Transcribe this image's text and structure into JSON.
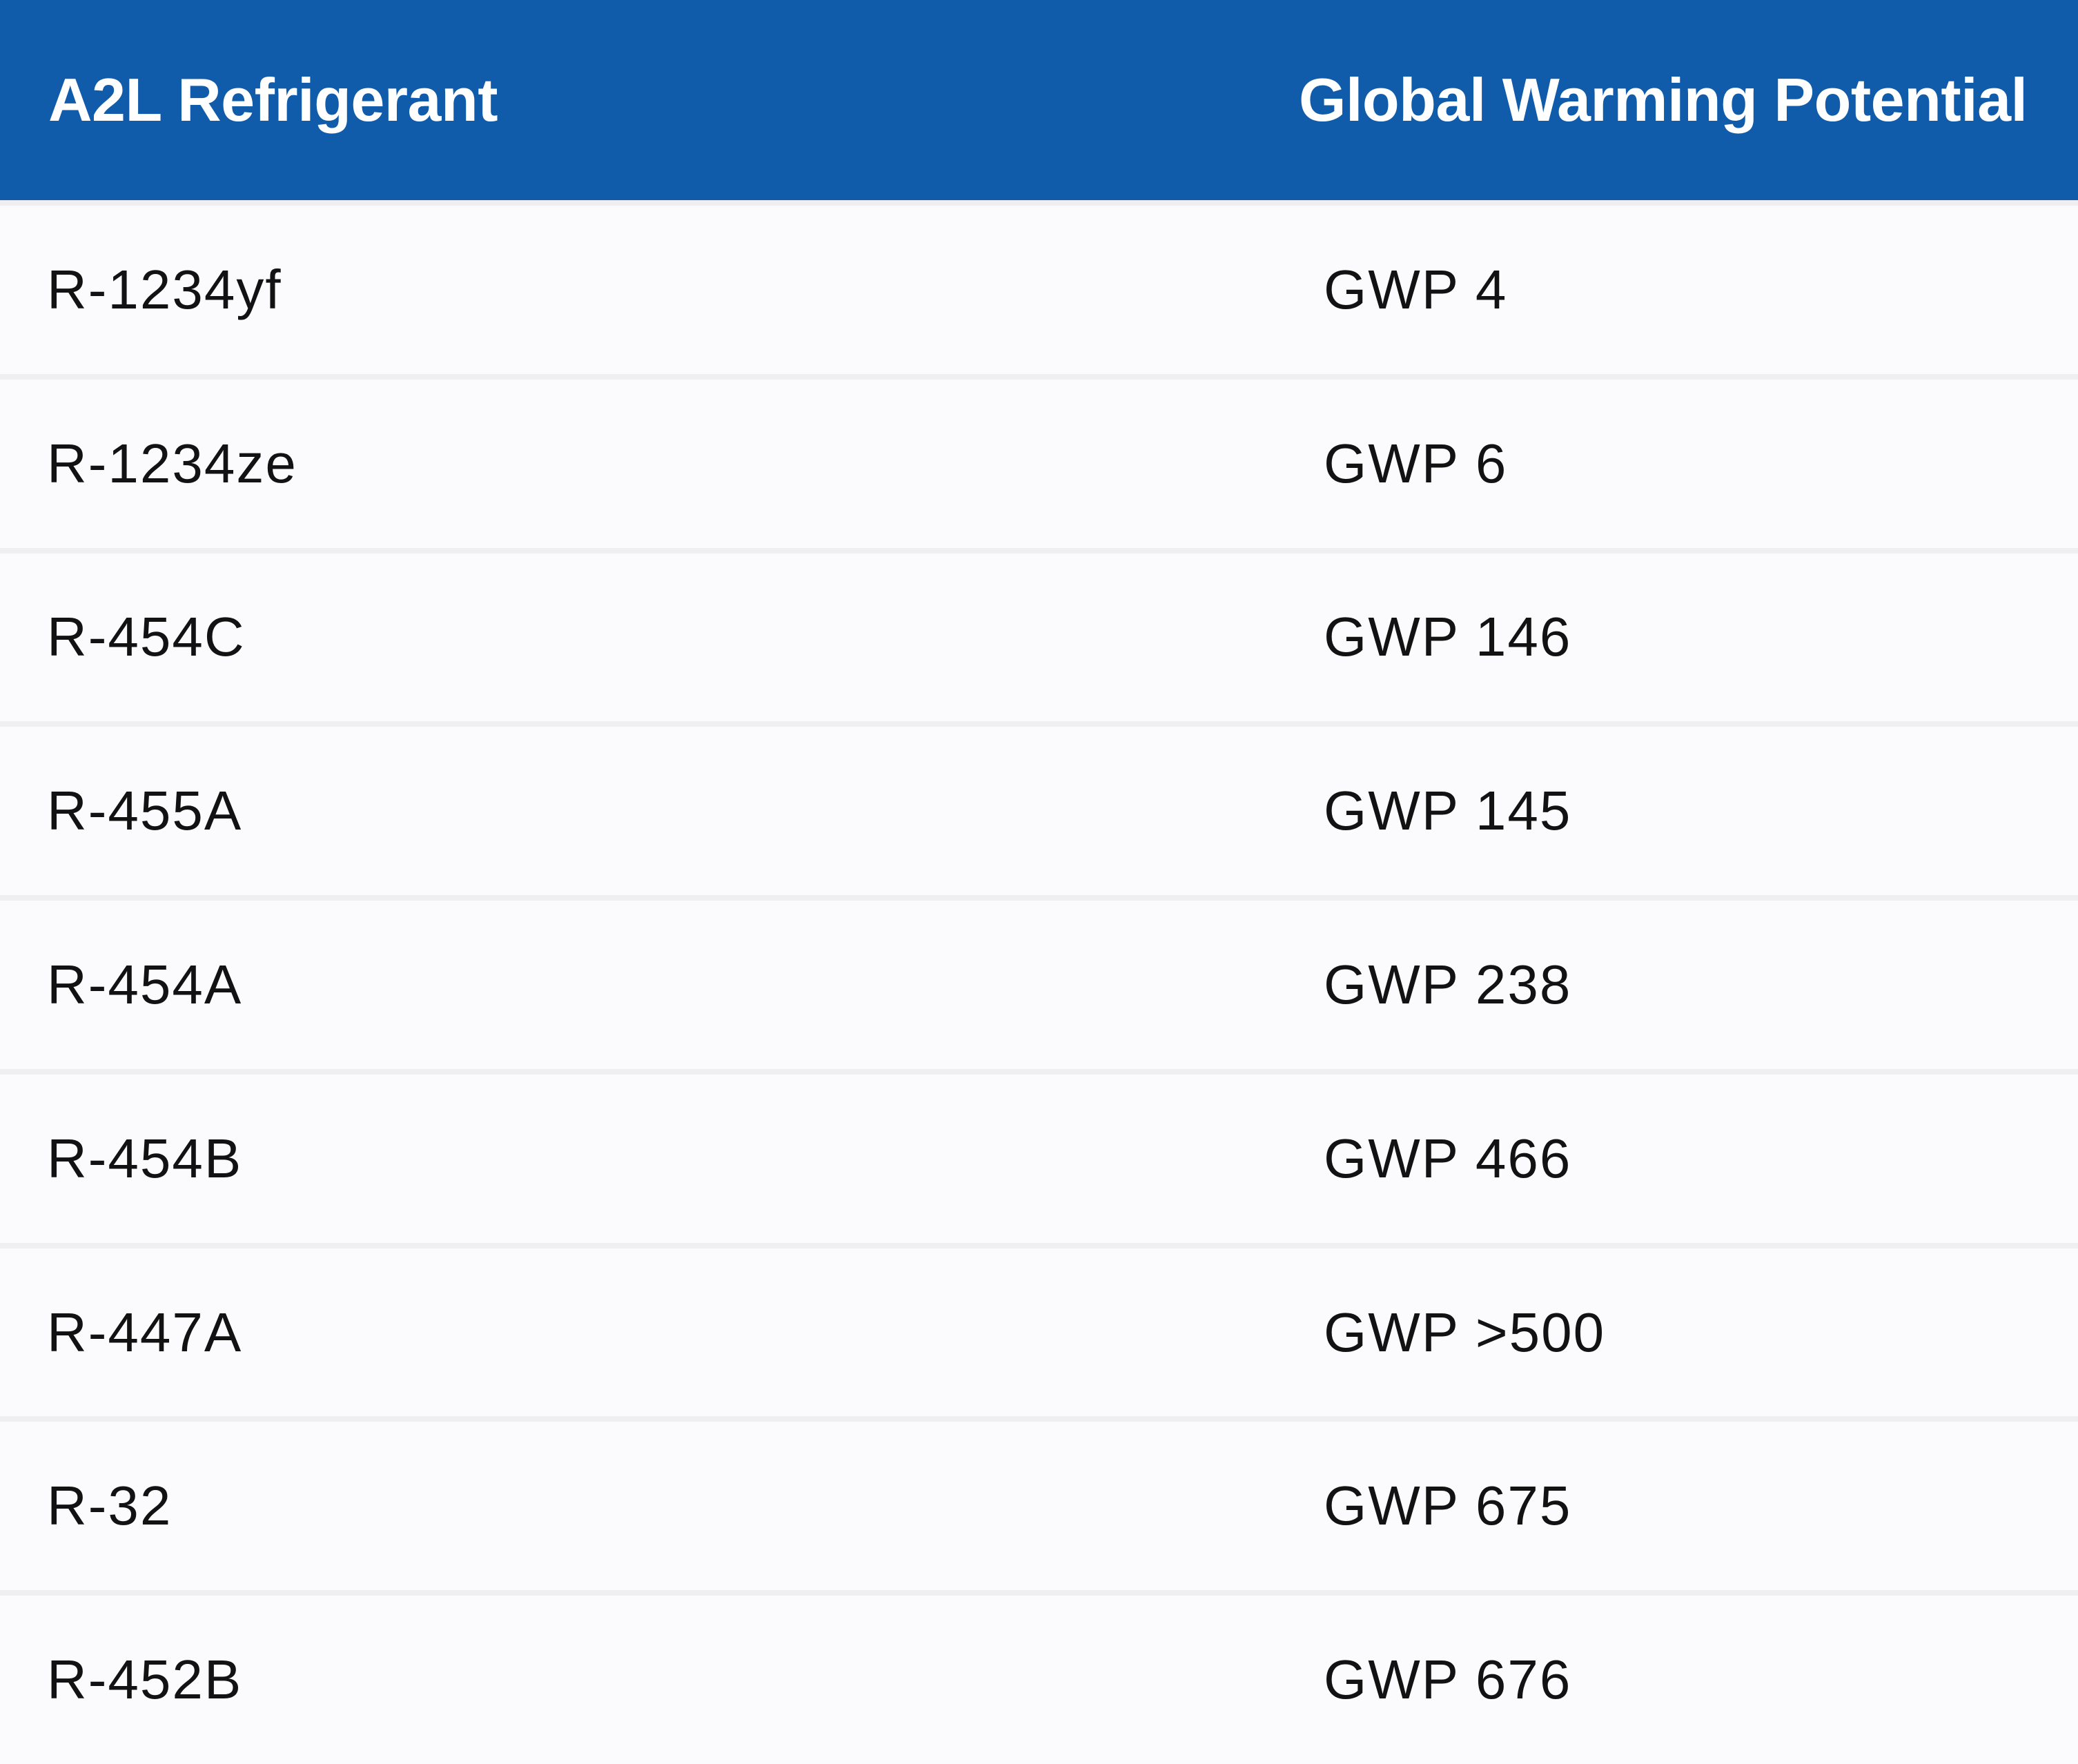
{
  "table": {
    "columns": [
      {
        "label": "A2L Refrigerant"
      },
      {
        "label": "Global Warming Potential"
      }
    ],
    "rows": [
      {
        "refrigerant": "R-1234yf",
        "gwp": "GWP 4"
      },
      {
        "refrigerant": "R-1234ze",
        "gwp": "GWP 6"
      },
      {
        "refrigerant": "R-454C",
        "gwp": "GWP 146"
      },
      {
        "refrigerant": "R-455A",
        "gwp": "GWP 145"
      },
      {
        "refrigerant": "R-454A",
        "gwp": "GWP 238"
      },
      {
        "refrigerant": "R-454B",
        "gwp": "GWP 466"
      },
      {
        "refrigerant": "R-447A",
        "gwp": "GWP >500"
      },
      {
        "refrigerant": "R-32",
        "gwp": "GWP 675"
      },
      {
        "refrigerant": "R-452B",
        "gwp": "GWP 676"
      }
    ]
  },
  "colors": {
    "header_bg": "#115CAA",
    "header_text": "#FFFFFF",
    "row_bg": "#FBFBFD",
    "divider": "#EFEFF2",
    "body_text": "#121212"
  },
  "chart_data": {
    "type": "table",
    "columns": [
      "A2L Refrigerant",
      "Global Warming Potential"
    ],
    "rows": [
      [
        "R-1234yf",
        "GWP 4"
      ],
      [
        "R-1234ze",
        "GWP 6"
      ],
      [
        "R-454C",
        "GWP 146"
      ],
      [
        "R-455A",
        "GWP 145"
      ],
      [
        "R-454A",
        "GWP 238"
      ],
      [
        "R-454B",
        "GWP 466"
      ],
      [
        "R-447A",
        "GWP >500"
      ],
      [
        "R-32",
        "GWP 675"
      ],
      [
        "R-452B",
        "GWP 676"
      ]
    ],
    "gwp_numeric": {
      "R-1234yf": 4,
      "R-1234ze": 6,
      "R-454C": 146,
      "R-455A": 145,
      "R-454A": 238,
      "R-454B": 466,
      "R-447A": ">500",
      "R-32": 675,
      "R-452B": 676
    },
    "layout": {
      "header_position": "top",
      "grid": "horizontal-dividers"
    }
  }
}
